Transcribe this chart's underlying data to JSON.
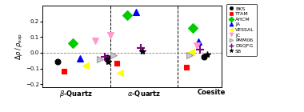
{
  "ylim": [
    -0.22,
    0.3
  ],
  "models": [
    "BKS",
    "TTAM",
    "AHCM",
    "JA",
    "VESSAL",
    "JC",
    "PMM06",
    "DSQFG",
    "SB"
  ],
  "colors": [
    "black",
    "red",
    "#00cc00",
    "blue",
    "yellow",
    "#ff99cc",
    "#cccccc",
    "purple",
    "black"
  ],
  "markers": [
    "o",
    "s",
    "D",
    "^",
    "<",
    "v",
    ">",
    "+",
    "*"
  ],
  "markersizes": [
    5,
    5,
    6,
    6,
    6,
    6,
    6,
    7,
    6
  ],
  "data": {
    "BKS": [
      -0.055,
      -0.03,
      -0.025
    ],
    "TTAM": [
      -0.115,
      -0.065,
      -0.09
    ],
    "AHCM": [
      0.062,
      0.24,
      0.16
    ],
    "JA": [
      -0.038,
      0.26,
      0.072
    ],
    "VESSAL": [
      -0.082,
      -0.125,
      0.005
    ],
    "JC": [
      0.075,
      0.11,
      0.048
    ],
    "PMM06": [
      -0.04,
      -0.018,
      -0.015
    ],
    "DSQFG": [
      -0.025,
      0.028,
      0.018
    ],
    "SB": [
      -0.055,
      0.012,
      -0.008
    ]
  },
  "x_positions": {
    "BKS": [
      0.72,
      1.45,
      2.88
    ],
    "TTAM": [
      0.82,
      1.6,
      2.62
    ],
    "AHCM": [
      0.95,
      1.75,
      2.72
    ],
    "JA": [
      1.05,
      1.88,
      2.8
    ],
    "VESSAL": [
      1.13,
      1.65,
      2.7
    ],
    "JC": [
      1.28,
      1.5,
      2.78
    ],
    "PMM06": [
      1.35,
      1.55,
      2.67
    ],
    "DSQFG": [
      1.42,
      1.95,
      2.83
    ],
    "SB": [
      1.47,
      1.98,
      2.93
    ]
  },
  "legend_markers": [
    5,
    5,
    6,
    6,
    6,
    6,
    6,
    7,
    6
  ]
}
